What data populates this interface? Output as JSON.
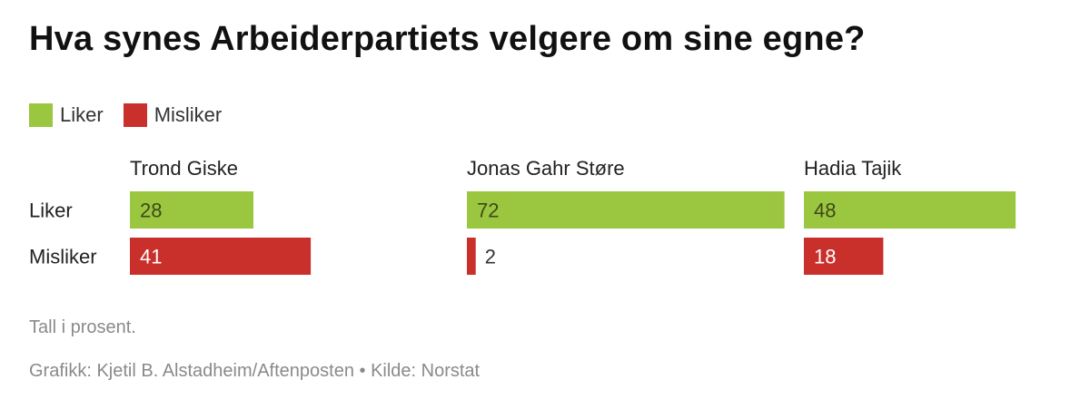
{
  "title": "Hva synes Arbeiderpartiets velgere om sine egne?",
  "legend": [
    {
      "label": "Liker",
      "color": "#9bc63f"
    },
    {
      "label": "Misliker",
      "color": "#c9302c"
    }
  ],
  "chart_data": {
    "type": "bar",
    "orientation": "horizontal",
    "title": "Hva synes Arbeiderpartiets velgere om sine egne?",
    "row_labels": [
      "Liker",
      "Misliker"
    ],
    "panels": [
      {
        "name": "Trond Giske",
        "values": {
          "Liker": 28,
          "Misliker": 41
        }
      },
      {
        "name": "Jonas Gahr Støre",
        "values": {
          "Liker": 72,
          "Misliker": 2
        }
      },
      {
        "name": "Hadia Tajik",
        "values": {
          "Liker": 48,
          "Misliker": 18
        }
      }
    ],
    "series": [
      {
        "name": "Liker",
        "values": [
          28,
          72,
          48
        ]
      },
      {
        "name": "Misliker",
        "values": [
          41,
          2,
          18
        ]
      }
    ],
    "categories": [
      "Trond Giske",
      "Jonas Gahr Støre",
      "Hadia Tajik"
    ],
    "xlim": [
      0,
      72
    ],
    "colors": {
      "Liker": "#9bc63f",
      "Misliker": "#c9302c"
    },
    "grid": false,
    "legend_position": "top-left"
  },
  "footer": {
    "note": "Tall i prosent.",
    "credit": "Grafikk: Kjetil B. Alstadheim/Aftenposten • Kilde: Norstat"
  }
}
